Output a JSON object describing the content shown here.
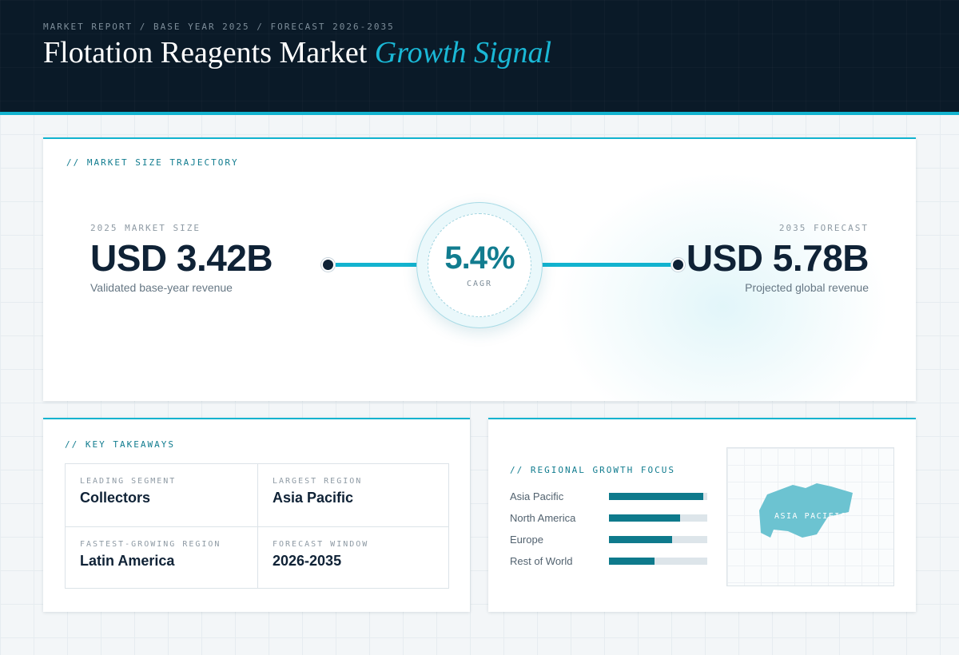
{
  "header": {
    "breadcrumb": "MARKET REPORT / BASE YEAR 2025 / FORECAST 2026-2035",
    "title_main": "Flotation Reagents Market ",
    "title_accent": "Growth Signal"
  },
  "trajectory": {
    "section_label": "// MARKET SIZE TRAJECTORY",
    "base": {
      "label": "2025 MARKET SIZE",
      "value": "USD 3.42B",
      "sub": "Validated base-year revenue"
    },
    "cagr": {
      "value": "5.4%",
      "label": "CAGR"
    },
    "forecast": {
      "label": "2035 FORECAST",
      "value": "USD 5.78B",
      "sub": "Projected global revenue"
    }
  },
  "takeaways": {
    "section_label": "// KEY TAKEAWAYS",
    "items": [
      {
        "label": "LEADING SEGMENT",
        "value": "Collectors"
      },
      {
        "label": "LARGEST REGION",
        "value": "Asia Pacific"
      },
      {
        "label": "FASTEST-GROWING REGION",
        "value": "Latin America"
      },
      {
        "label": "FORECAST WINDOW",
        "value": "2026-2035"
      }
    ]
  },
  "regional": {
    "section_label": "// REGIONAL GROWTH FOCUS",
    "regions": [
      {
        "name": "Asia Pacific",
        "share": 0.96
      },
      {
        "name": "North America",
        "share": 0.72
      },
      {
        "name": "Europe",
        "share": 0.64
      },
      {
        "name": "Rest of World",
        "share": 0.46
      }
    ],
    "map_label": "ASIA PACIFIC",
    "map_color": "#6cc3d1"
  },
  "colors": {
    "accent": "#12b3cf",
    "dark": "#0a1a28",
    "bar": "#0e7a8c"
  }
}
